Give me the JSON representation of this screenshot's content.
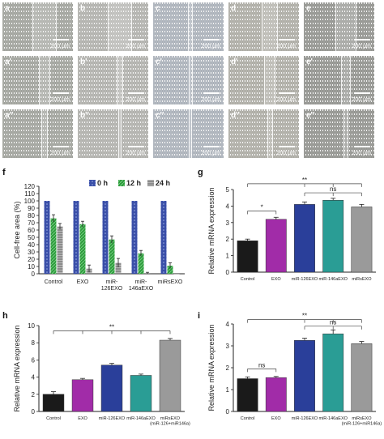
{
  "micrographs": {
    "rows": [
      [
        "a",
        "b",
        "c",
        "d",
        "e"
      ],
      [
        "a'",
        "b'",
        "c'",
        "d'",
        "e'"
      ],
      [
        "a''",
        "b''",
        "c''",
        "d''",
        "e''"
      ]
    ],
    "scale_bar": "200 μm",
    "colors": [
      "#a9aba5",
      "#b8b8b4",
      "#b3b9c1",
      "#b5b4ad",
      "#9c9d99"
    ]
  },
  "panel_labels": {
    "f": "f",
    "g": "g",
    "h": "h",
    "i": "i"
  },
  "chart_data": [
    {
      "panel": "f",
      "type": "bar",
      "ylabel": "Cell-free area (%)",
      "ylim": [
        0,
        120
      ],
      "yticks": [
        0,
        10,
        20,
        30,
        40,
        50,
        60,
        70,
        80,
        90,
        100,
        110,
        120
      ],
      "categories": [
        "Control",
        "EXO",
        "miR-126EXO",
        "miR-146aEXO",
        "miRsEXO"
      ],
      "category_lines": [
        [
          "Control"
        ],
        [
          "EXO"
        ],
        [
          "miR-",
          "126EXO"
        ],
        [
          "miR-",
          "146aEXO"
        ],
        [
          "miRsEXO"
        ]
      ],
      "series": [
        {
          "name": "0 h",
          "values": [
            100,
            100,
            100,
            100,
            100
          ],
          "errors": [
            0,
            0,
            0,
            0,
            0
          ],
          "color": "#3a4fa8"
        },
        {
          "name": "12 h",
          "values": [
            76,
            68,
            47,
            28,
            11
          ],
          "errors": [
            5,
            4,
            5,
            4,
            4
          ],
          "color": "#2f9c3d"
        },
        {
          "name": "24 h",
          "values": [
            65,
            7,
            15,
            1,
            0
          ],
          "errors": [
            4,
            5,
            6,
            1,
            0
          ],
          "color": "#8c8c8c"
        }
      ],
      "legend": "top"
    },
    {
      "panel": "g",
      "type": "bar",
      "ylabel": "Relative mRNA expression",
      "ylim": [
        0,
        5
      ],
      "yticks": [
        0,
        1,
        2,
        3,
        4,
        5
      ],
      "categories": [
        "Control",
        "EXO",
        "miR-126EXO",
        "miR-146aEXO",
        "miRsEXO"
      ],
      "category_lines": [
        [
          "Control"
        ],
        [
          "EXO"
        ],
        [
          "miR-126EXO"
        ],
        [
          "miR-146aEXO"
        ],
        [
          "miRsEXO"
        ]
      ],
      "values": [
        1.9,
        3.2,
        4.1,
        4.35,
        3.95
      ],
      "errors": [
        0.1,
        0.12,
        0.15,
        0.12,
        0.15
      ],
      "colors": [
        "#1a1a1a",
        "#a12ca8",
        "#2a3f9a",
        "#2a9d95",
        "#9a9a9a"
      ],
      "significance": [
        "*",
        "ns",
        "**"
      ]
    },
    {
      "panel": "h",
      "type": "bar",
      "ylabel": "Relative mRNA expression",
      "ylim": [
        0,
        10
      ],
      "yticks": [
        0,
        2,
        4,
        6,
        8,
        10
      ],
      "categories": [
        "Control",
        "EXO",
        "miR-126EXO",
        "miR-146aEXO",
        "miRsEXO (miR-126+miR146a)"
      ],
      "category_lines": [
        [
          "Control"
        ],
        [
          "EXO"
        ],
        [
          "miR-126EXO"
        ],
        [
          "miR-146aEXO"
        ],
        [
          "miRsEXO",
          "(miR-126+miR146a)"
        ]
      ],
      "values": [
        2.0,
        3.7,
        5.4,
        4.2,
        8.3
      ],
      "errors": [
        0.3,
        0.15,
        0.2,
        0.15,
        0.2
      ],
      "colors": [
        "#1a1a1a",
        "#a12ca8",
        "#2a3f9a",
        "#2a9d95",
        "#9a9a9a"
      ],
      "significance": [
        "**"
      ]
    },
    {
      "panel": "i",
      "type": "bar",
      "ylabel": "Relative mRNA expression",
      "ylim": [
        0,
        4
      ],
      "yticks": [
        0,
        1,
        2,
        3,
        4
      ],
      "categories": [
        "Control",
        "EXO",
        "miR-126EXO",
        "miR-146aEXO",
        "miRsEXO (miR-126+miR146a)"
      ],
      "category_lines": [
        [
          "Control"
        ],
        [
          "EXO"
        ],
        [
          "miR-126EXO"
        ],
        [
          "miR-146aEXO"
        ],
        [
          "miRsEXO",
          "(miR-126+miR146a)"
        ]
      ],
      "values": [
        1.5,
        1.55,
        3.25,
        3.55,
        3.1
      ],
      "errors": [
        0.08,
        0.05,
        0.1,
        0.18,
        0.1
      ],
      "colors": [
        "#1a1a1a",
        "#a12ca8",
        "#2a3f9a",
        "#2a9d95",
        "#9a9a9a"
      ],
      "significance": [
        "ns",
        "**",
        "ns"
      ]
    }
  ]
}
